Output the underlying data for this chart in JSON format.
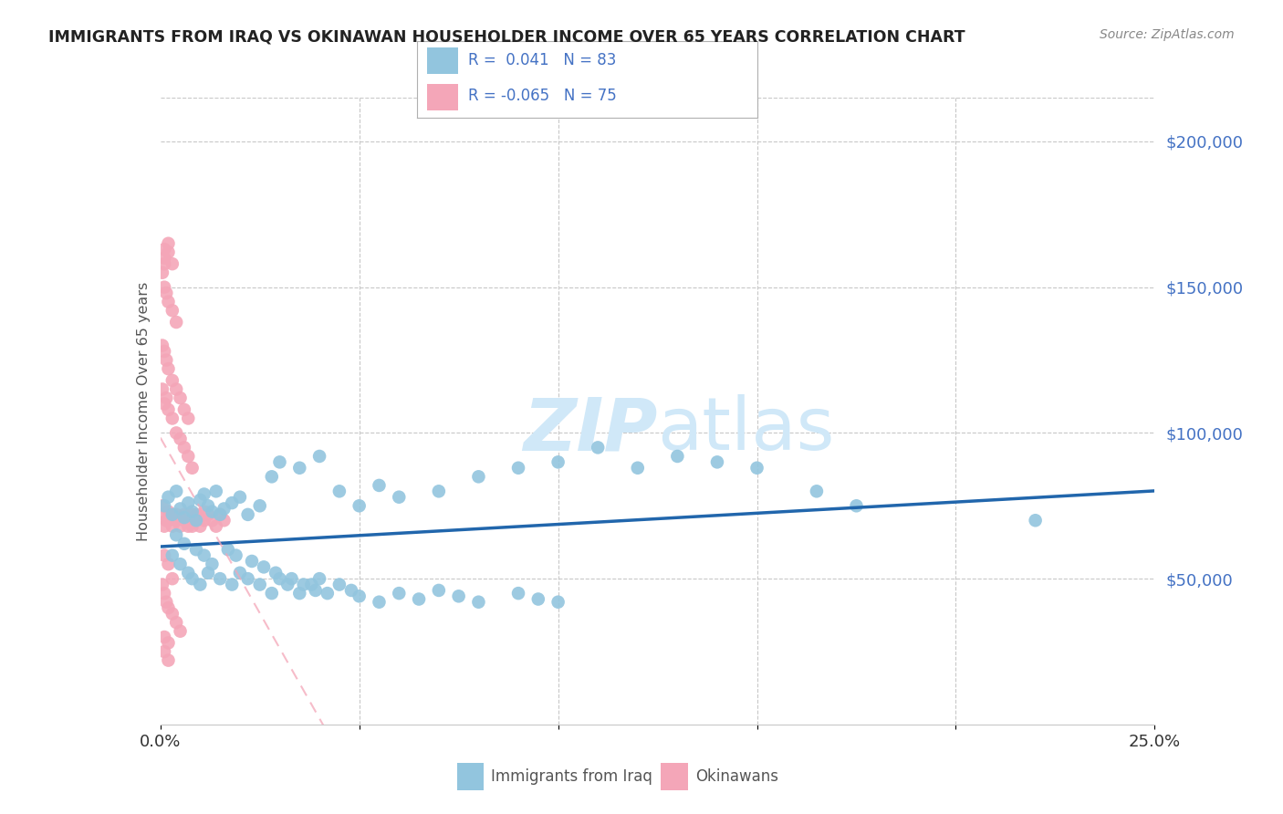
{
  "title": "IMMIGRANTS FROM IRAQ VS OKINAWAN HOUSEHOLDER INCOME OVER 65 YEARS CORRELATION CHART",
  "source": "Source: ZipAtlas.com",
  "ylabel": "Householder Income Over 65 years",
  "yticks": [
    0,
    50000,
    100000,
    150000,
    200000
  ],
  "ytick_labels": [
    "",
    "$50,000",
    "$100,000",
    "$150,000",
    "$200,000"
  ],
  "xlim": [
    0.0,
    0.25
  ],
  "ylim": [
    0,
    215000
  ],
  "legend_r1": "R =  0.041",
  "legend_n1": "N = 83",
  "legend_r2": "R = -0.065",
  "legend_n2": "N = 75",
  "legend_label1": "Immigrants from Iraq",
  "legend_label2": "Okinawans",
  "blue_color": "#92c5de",
  "pink_color": "#f4a6b8",
  "blue_line_color": "#2166ac",
  "pink_line_color": "#f4a6b8",
  "axis_color": "#4472c4",
  "watermark_color": "#d0e8f8",
  "title_color": "#222222",
  "source_color": "#888888",
  "ylabel_color": "#555555",
  "xtick_color": "#333333",
  "blue_scatter_x": [
    0.001,
    0.002,
    0.003,
    0.004,
    0.005,
    0.006,
    0.007,
    0.008,
    0.009,
    0.01,
    0.011,
    0.012,
    0.013,
    0.014,
    0.015,
    0.016,
    0.018,
    0.02,
    0.022,
    0.025,
    0.028,
    0.03,
    0.035,
    0.04,
    0.045,
    0.05,
    0.055,
    0.06,
    0.07,
    0.08,
    0.09,
    0.1,
    0.11,
    0.12,
    0.13,
    0.14,
    0.15,
    0.165,
    0.175,
    0.22,
    0.003,
    0.005,
    0.007,
    0.008,
    0.01,
    0.012,
    0.015,
    0.018,
    0.02,
    0.022,
    0.025,
    0.028,
    0.03,
    0.032,
    0.035,
    0.038,
    0.04,
    0.042,
    0.045,
    0.048,
    0.05,
    0.055,
    0.06,
    0.065,
    0.07,
    0.075,
    0.08,
    0.09,
    0.095,
    0.1,
    0.004,
    0.006,
    0.009,
    0.011,
    0.013,
    0.017,
    0.019,
    0.023,
    0.026,
    0.029,
    0.033,
    0.036,
    0.039
  ],
  "blue_scatter_y": [
    75000,
    78000,
    72000,
    80000,
    74000,
    71000,
    76000,
    73000,
    70000,
    77000,
    79000,
    75000,
    73000,
    80000,
    72000,
    74000,
    76000,
    78000,
    72000,
    75000,
    85000,
    90000,
    88000,
    92000,
    80000,
    75000,
    82000,
    78000,
    80000,
    85000,
    88000,
    90000,
    95000,
    88000,
    92000,
    90000,
    88000,
    80000,
    75000,
    70000,
    58000,
    55000,
    52000,
    50000,
    48000,
    52000,
    50000,
    48000,
    52000,
    50000,
    48000,
    45000,
    50000,
    48000,
    45000,
    48000,
    50000,
    45000,
    48000,
    46000,
    44000,
    42000,
    45000,
    43000,
    46000,
    44000,
    42000,
    45000,
    43000,
    42000,
    65000,
    62000,
    60000,
    58000,
    55000,
    60000,
    58000,
    56000,
    54000,
    52000,
    50000,
    48000,
    46000
  ],
  "pink_scatter_x": [
    0.0005,
    0.001,
    0.001,
    0.0015,
    0.002,
    0.002,
    0.0025,
    0.003,
    0.003,
    0.004,
    0.004,
    0.005,
    0.005,
    0.006,
    0.006,
    0.007,
    0.007,
    0.008,
    0.008,
    0.009,
    0.009,
    0.01,
    0.01,
    0.011,
    0.011,
    0.012,
    0.013,
    0.014,
    0.015,
    0.016,
    0.0005,
    0.001,
    0.0015,
    0.002,
    0.003,
    0.004,
    0.005,
    0.006,
    0.007,
    0.008,
    0.0005,
    0.001,
    0.0015,
    0.002,
    0.003,
    0.004,
    0.005,
    0.006,
    0.007,
    0.0005,
    0.001,
    0.0015,
    0.002,
    0.003,
    0.004,
    0.001,
    0.002,
    0.003,
    0.0005,
    0.001,
    0.0015,
    0.002,
    0.003,
    0.004,
    0.005,
    0.001,
    0.002,
    0.003,
    0.001,
    0.002,
    0.001,
    0.002,
    0.001,
    0.001,
    0.002
  ],
  "pink_scatter_y": [
    75000,
    72000,
    68000,
    70000,
    73000,
    70000,
    72000,
    68000,
    71000,
    70000,
    72000,
    68000,
    71000,
    70000,
    72000,
    68000,
    70000,
    72000,
    68000,
    70000,
    72000,
    68000,
    71000,
    73000,
    70000,
    72000,
    70000,
    68000,
    72000,
    70000,
    115000,
    110000,
    112000,
    108000,
    105000,
    100000,
    98000,
    95000,
    92000,
    88000,
    130000,
    128000,
    125000,
    122000,
    118000,
    115000,
    112000,
    108000,
    105000,
    155000,
    150000,
    148000,
    145000,
    142000,
    138000,
    160000,
    162000,
    158000,
    48000,
    45000,
    42000,
    40000,
    38000,
    35000,
    32000,
    58000,
    55000,
    50000,
    30000,
    28000,
    25000,
    22000,
    163000,
    158000,
    165000
  ]
}
